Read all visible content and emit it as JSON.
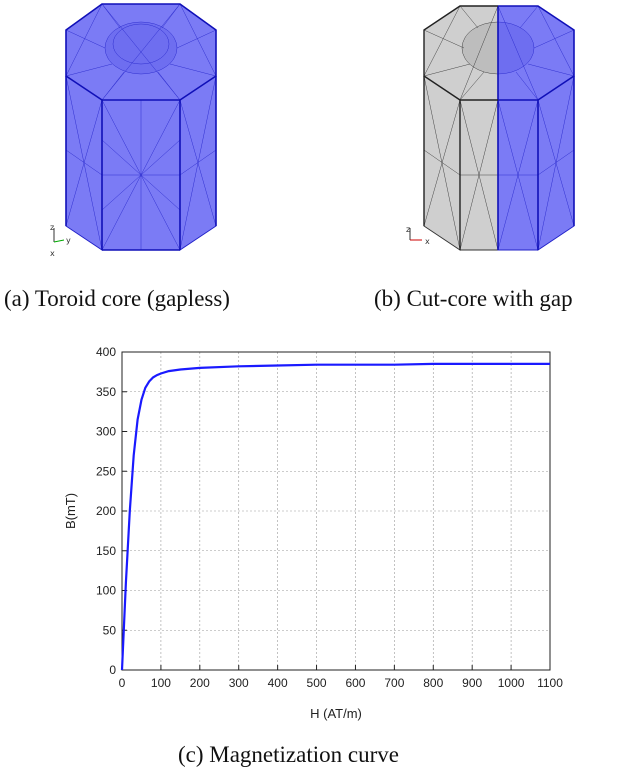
{
  "figure": {
    "captions": {
      "a": "(a) Toroid core (gapless)",
      "b": "(b) Cut-core with gap",
      "c": "(c) Magnetization curve"
    },
    "mesh_a": {
      "axis_labels": [
        "z",
        "y",
        "x"
      ],
      "fill": "#7b7bf5",
      "edge": "#1c1cc8"
    },
    "mesh_b": {
      "axis_labels": [
        "z",
        "x"
      ],
      "fill_left": "#cfcfcf",
      "fill_right": "#7b7bf5"
    }
  },
  "chart_data": {
    "type": "line",
    "title": "",
    "xlabel": "H (AT/m)",
    "ylabel": "B(mT)",
    "xlim": [
      0,
      1100
    ],
    "ylim": [
      0,
      400
    ],
    "xticks": [
      0,
      100,
      200,
      300,
      400,
      500,
      600,
      700,
      800,
      900,
      1000,
      1100
    ],
    "yticks": [
      0,
      50,
      100,
      150,
      200,
      250,
      300,
      350,
      400
    ],
    "grid": true,
    "series": [
      {
        "color": "#1a1aff",
        "x": [
          0,
          10,
          20,
          30,
          40,
          50,
          60,
          70,
          80,
          90,
          100,
          120,
          150,
          200,
          300,
          400,
          500,
          600,
          700,
          800,
          900,
          1000,
          1100
        ],
        "y": [
          0,
          110,
          200,
          270,
          315,
          340,
          355,
          363,
          368,
          371,
          373,
          376,
          378,
          380,
          382,
          383,
          384,
          384,
          384,
          385,
          385,
          385,
          385
        ]
      }
    ]
  }
}
